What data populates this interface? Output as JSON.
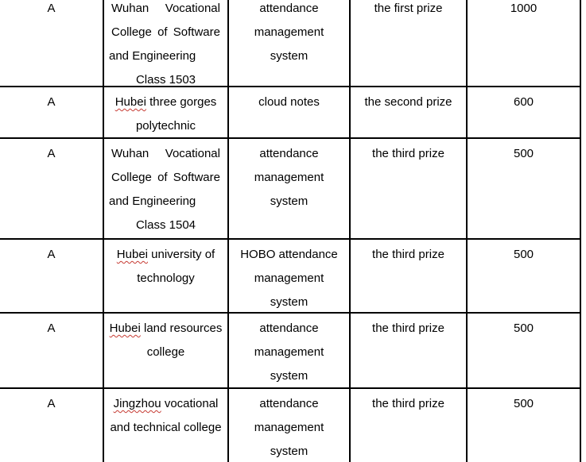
{
  "colors": {
    "background": "#ffffff",
    "text": "#000000",
    "table_border": "#000000",
    "spellcheck_underline": "#c63b33"
  },
  "table": {
    "rows": [
      {
        "category": "A",
        "school_lines": [
          {
            "words": [
              "Wuhan",
              "Vocational"
            ]
          },
          {
            "words": [
              "College",
              "of",
              "Software"
            ]
          },
          {
            "text": "and Engineering"
          },
          {
            "text": "Class 1503"
          }
        ],
        "project_lines": [
          "attendance",
          "management",
          "system"
        ],
        "prize": "the first prize",
        "amount": "1000"
      },
      {
        "category": "A",
        "school_lines": [
          {
            "parts": [
              "Hubei",
              " three gorges"
            ],
            "misspelled_word": "Hubei"
          },
          {
            "text": "polytechnic"
          }
        ],
        "project_lines": [
          "cloud notes"
        ],
        "prize": "the second prize",
        "amount": "600"
      },
      {
        "category": "A",
        "school_lines": [
          {
            "words": [
              "Wuhan",
              "Vocational"
            ]
          },
          {
            "words": [
              "College",
              "of",
              "Software"
            ]
          },
          {
            "text": "and Engineering"
          },
          {
            "text": "Class 1504"
          }
        ],
        "project_lines": [
          "attendance",
          "management",
          "system"
        ],
        "prize": "the third prize",
        "amount": "500"
      },
      {
        "category": "A",
        "school_lines": [
          {
            "parts": [
              "Hubei",
              " university of"
            ],
            "misspelled_word": "Hubei"
          },
          {
            "text": "technology"
          }
        ],
        "project_lines": [
          "HOBO attendance",
          "management",
          "system"
        ],
        "prize": "the third prize",
        "amount": "500"
      },
      {
        "category": "A",
        "school_lines": [
          {
            "parts": [
              "Hubei",
              " land resources"
            ],
            "misspelled_word": "Hubei"
          },
          {
            "text": "college"
          }
        ],
        "project_lines": [
          "attendance",
          "management",
          "system"
        ],
        "prize": "the third prize",
        "amount": "500"
      },
      {
        "category": "A",
        "school_lines": [
          {
            "parts": [
              "Jingzhou",
              " vocational"
            ],
            "misspelled_word": "Jingzhou"
          },
          {
            "text": "and technical college"
          }
        ],
        "project_lines": [
          "attendance",
          "management",
          "system"
        ],
        "prize": "the third prize",
        "amount": "500"
      }
    ]
  }
}
